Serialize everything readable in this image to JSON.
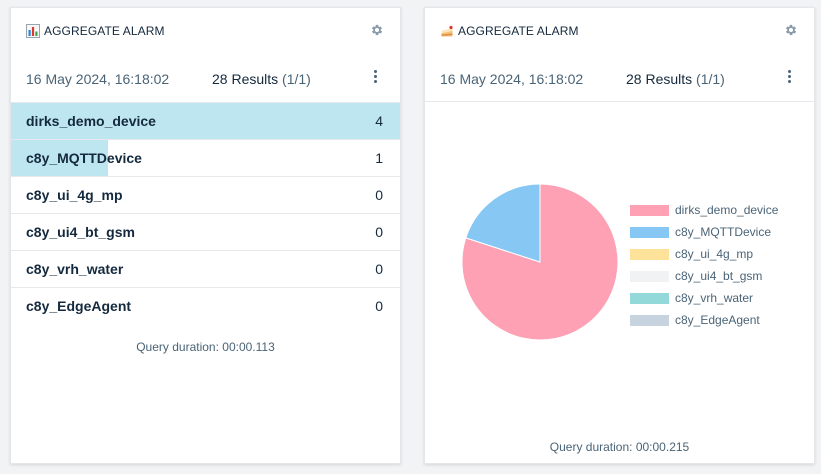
{
  "colors": {
    "bar": "#bee6f0",
    "pie": [
      "#ffa1b5",
      "#86c7f3",
      "#ffe29a",
      "#f1f2f4",
      "#93d9d9",
      "#c7d4e0"
    ]
  },
  "left_card": {
    "title": "AGGREGATE ALARM",
    "title_icon": "bar-chart-icon",
    "date": "16 May 2024, 16:18:02",
    "results_label": "28 Results",
    "pages": "(1/1)",
    "query_duration": "Query duration: 00:00.113",
    "rows": [
      {
        "name": "dirks_demo_device",
        "count": "4",
        "value": 4
      },
      {
        "name": "c8y_MQTTDevice",
        "count": "1",
        "value": 1
      },
      {
        "name": "c8y_ui_4g_mp",
        "count": "0",
        "value": 0
      },
      {
        "name": "c8y_ui4_bt_gsm",
        "count": "0",
        "value": 0
      },
      {
        "name": "c8y_vrh_water",
        "count": "0",
        "value": 0
      },
      {
        "name": "c8y_EdgeAgent",
        "count": "0",
        "value": 0
      }
    ]
  },
  "right_card": {
    "title": "AGGREGATE ALARM",
    "title_icon": "cake-icon",
    "date": "16 May 2024, 16:18:02",
    "results_label": "28 Results",
    "pages": "(1/1)",
    "query_duration": "Query duration: 00:00.215"
  },
  "chart_data": {
    "type": "pie",
    "labels": [
      "dirks_demo_device",
      "c8y_MQTTDevice",
      "c8y_ui_4g_mp",
      "c8y_ui4_bt_gsm",
      "c8y_vrh_water",
      "c8y_EdgeAgent"
    ],
    "values": [
      4,
      1,
      0,
      0,
      0,
      0
    ],
    "legend": "right"
  }
}
